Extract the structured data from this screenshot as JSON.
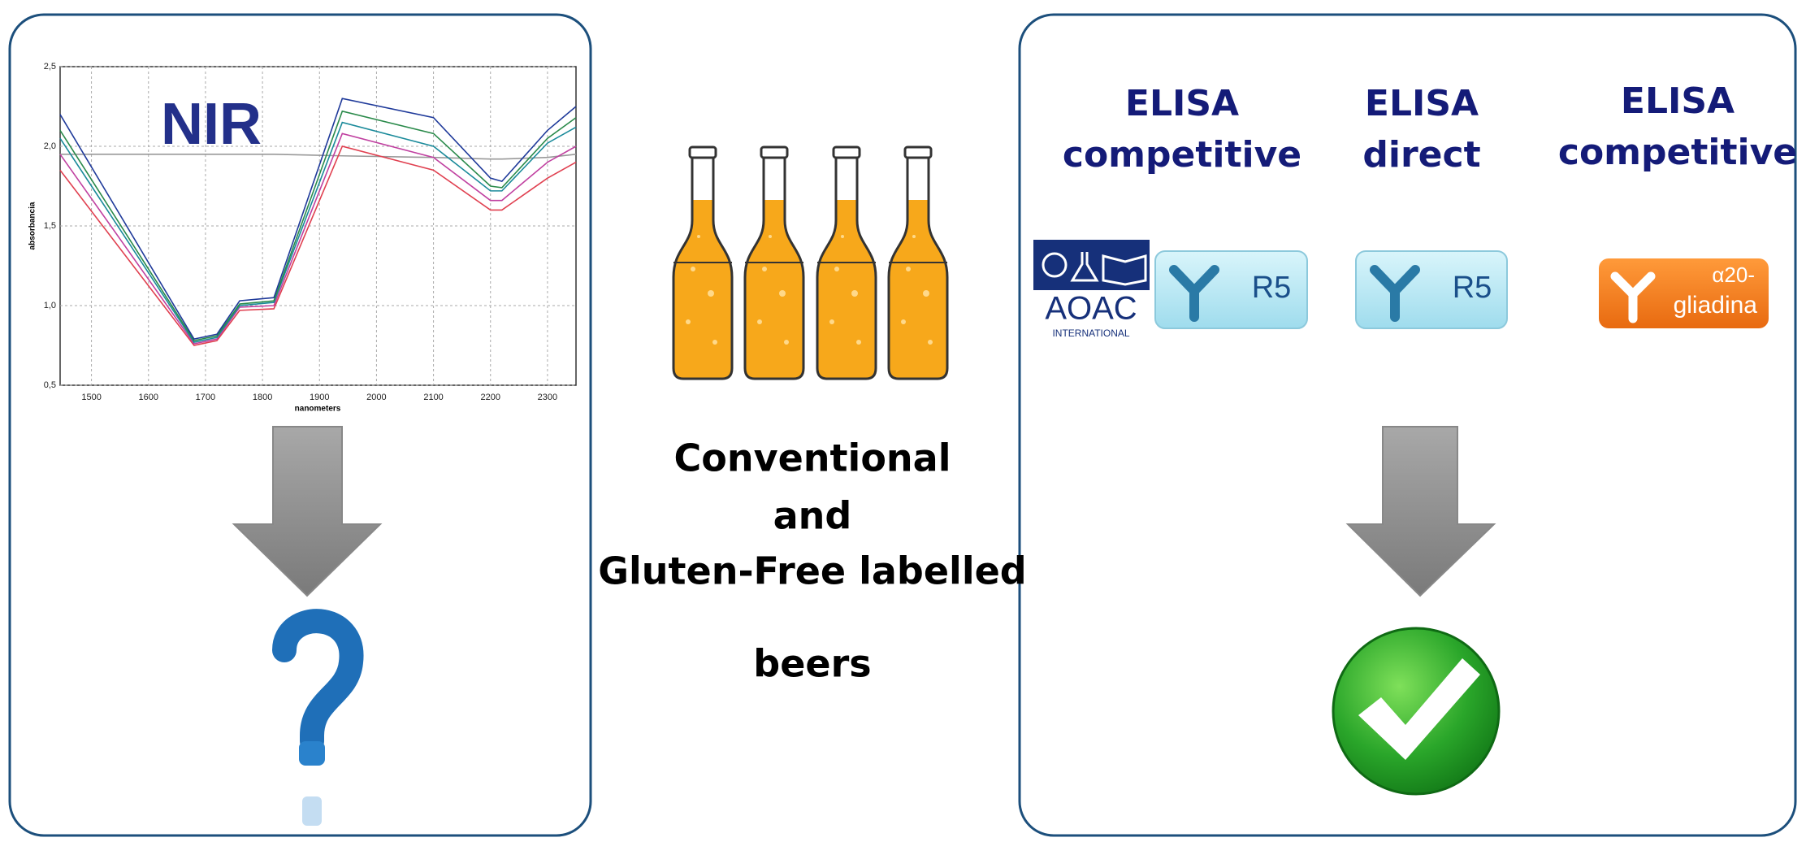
{
  "nir_chart": {
    "type": "line",
    "title": "NIR",
    "x_label": "nanometers",
    "y_label": "absorbancia",
    "xlim": [
      1445,
      2350
    ],
    "ylim": [
      0.5,
      2.5
    ],
    "xticks": [
      1500,
      1600,
      1700,
      1800,
      1900,
      2000,
      2100,
      2200,
      2300
    ],
    "yticks": [
      {
        "value": 0.5,
        "label": "0,5"
      },
      {
        "value": 1.0,
        "label": "1,0"
      },
      {
        "value": 1.5,
        "label": "1,5"
      },
      {
        "value": 2.0,
        "label": "2,0"
      },
      {
        "value": 2.5,
        "label": "2,5"
      }
    ],
    "grid": true,
    "x": [
      1445,
      1680,
      1720,
      1760,
      1820,
      1940,
      2100,
      2200,
      2220,
      2300,
      2350
    ],
    "series": [
      {
        "color": "#999999",
        "values": [
          1.95,
          1.95,
          1.95,
          1.95,
          1.95,
          1.94,
          1.93,
          1.92,
          1.92,
          1.93,
          1.95
        ]
      },
      {
        "color": "#e04050",
        "values": [
          1.85,
          0.75,
          0.78,
          0.97,
          0.98,
          2.0,
          1.85,
          1.6,
          1.6,
          1.8,
          1.9
        ]
      },
      {
        "color": "#c040a0",
        "values": [
          1.95,
          0.76,
          0.79,
          0.99,
          1.0,
          2.08,
          1.93,
          1.66,
          1.66,
          1.9,
          2.0
        ]
      },
      {
        "color": "#1a8a9a",
        "values": [
          2.05,
          0.77,
          0.8,
          1.0,
          1.02,
          2.15,
          2.0,
          1.72,
          1.72,
          2.02,
          2.12
        ]
      },
      {
        "color": "#2a8a4a",
        "values": [
          2.1,
          0.78,
          0.81,
          1.01,
          1.03,
          2.22,
          2.08,
          1.75,
          1.74,
          2.05,
          2.18
        ]
      },
      {
        "color": "#1f3a9a",
        "values": [
          2.2,
          0.79,
          0.82,
          1.03,
          1.05,
          2.3,
          2.18,
          1.8,
          1.78,
          2.1,
          2.25
        ]
      }
    ]
  },
  "center": {
    "lines": [
      "Conventional",
      "and",
      "Gluten-Free labelled",
      "beers"
    ]
  },
  "methods": [
    {
      "line1": "ELISA",
      "line2": "competitive"
    },
    {
      "line1": "ELISA",
      "line2": "direct"
    },
    {
      "line1": "ELISA",
      "line2": "competitive"
    }
  ],
  "logos": {
    "aoac": "AOAC",
    "aoac_sub": "INTERNATIONAL",
    "r5_a": "R5",
    "r5_b": "R5",
    "gliadin_top": "α20-",
    "gliadin_bottom": "gliadina"
  }
}
